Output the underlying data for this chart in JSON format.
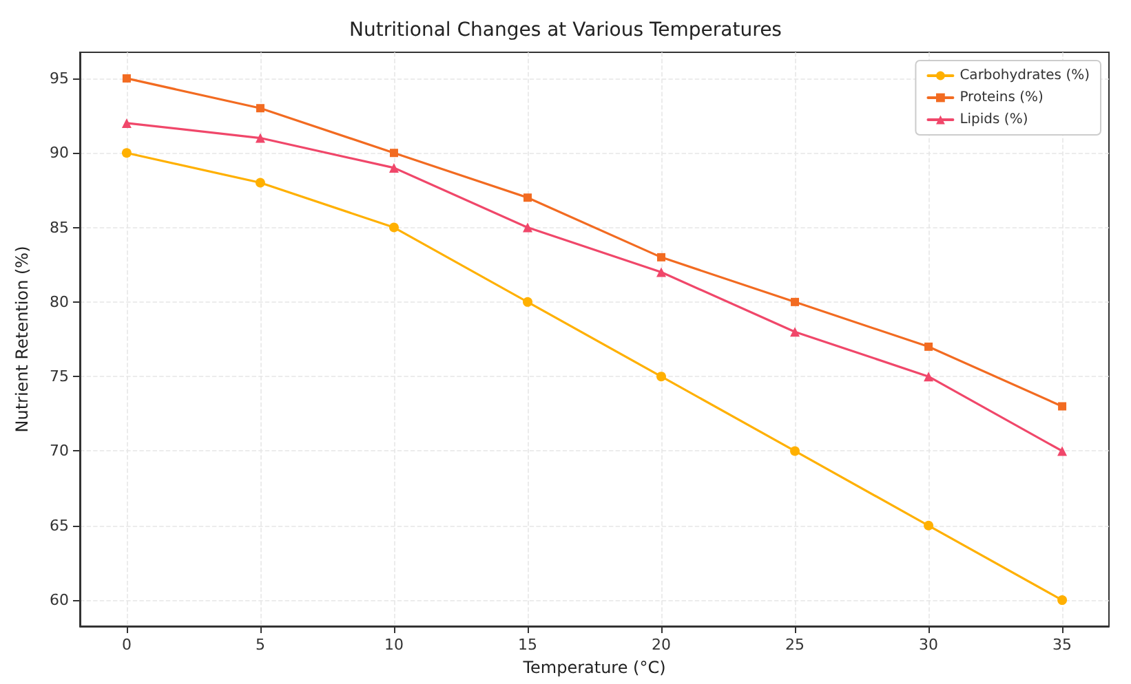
{
  "chart_data": {
    "type": "line",
    "title": "Nutritional Changes at Various Temperatures",
    "xlabel": "Temperature (°C)",
    "ylabel": "Nutrient Retention (%)",
    "x": [
      0,
      5,
      10,
      15,
      20,
      25,
      30,
      35
    ],
    "series": [
      {
        "name": "Carbohydrates (%)",
        "color": "#ffb000",
        "marker": "circle",
        "values": [
          90,
          88,
          85,
          80,
          75,
          70,
          65,
          60
        ]
      },
      {
        "name": "Proteins (%)",
        "color": "#f26b21",
        "marker": "square",
        "values": [
          95,
          93,
          90,
          87,
          83,
          80,
          77,
          73
        ]
      },
      {
        "name": "Lipids (%)",
        "color": "#f0476a",
        "marker": "triangle",
        "values": [
          92,
          91,
          89,
          85,
          82,
          78,
          75,
          70
        ]
      }
    ],
    "xlim": [
      -1.75,
      36.75
    ],
    "xticks": [
      0,
      5,
      10,
      15,
      20,
      25,
      30,
      35
    ],
    "ylim": [
      58.25,
      96.75
    ],
    "yticks": [
      60,
      65,
      70,
      75,
      80,
      85,
      90,
      95
    ],
    "grid": true,
    "legend": "top right",
    "line_style": "solid"
  }
}
